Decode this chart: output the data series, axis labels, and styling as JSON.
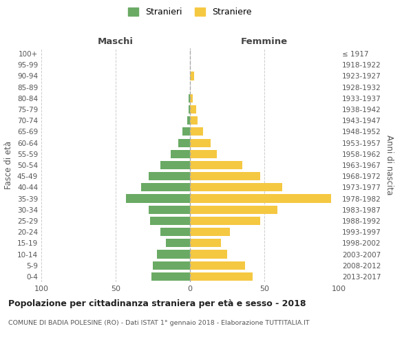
{
  "age_groups": [
    "100+",
    "95-99",
    "90-94",
    "85-89",
    "80-84",
    "75-79",
    "70-74",
    "65-69",
    "60-64",
    "55-59",
    "50-54",
    "45-49",
    "40-44",
    "35-39",
    "30-34",
    "25-29",
    "20-24",
    "15-19",
    "10-14",
    "5-9",
    "0-4"
  ],
  "birth_years": [
    "≤ 1917",
    "1918-1922",
    "1923-1927",
    "1928-1932",
    "1933-1937",
    "1938-1942",
    "1943-1947",
    "1948-1952",
    "1953-1957",
    "1958-1962",
    "1963-1967",
    "1968-1972",
    "1973-1977",
    "1978-1982",
    "1983-1987",
    "1988-1992",
    "1993-1997",
    "1998-2002",
    "2003-2007",
    "2008-2012",
    "2013-2017"
  ],
  "males": [
    0,
    0,
    0,
    0,
    1,
    1,
    2,
    5,
    8,
    13,
    20,
    28,
    33,
    43,
    28,
    27,
    20,
    16,
    22,
    25,
    26
  ],
  "females": [
    0,
    0,
    3,
    0,
    2,
    4,
    5,
    9,
    14,
    18,
    35,
    47,
    62,
    95,
    59,
    47,
    27,
    21,
    25,
    37,
    42
  ],
  "male_color": "#6aaa64",
  "female_color": "#f5c842",
  "dashed_line_color": "#aaaaaa",
  "grid_color": "#cccccc",
  "background_color": "#ffffff",
  "title": "Popolazione per cittadinanza straniera per età e sesso - 2018",
  "subtitle": "COMUNE DI BADIA POLESINE (RO) - Dati ISTAT 1° gennaio 2018 - Elaborazione TUTTITALIA.IT",
  "xlabel_left": "Maschi",
  "xlabel_right": "Femmine",
  "ylabel_left": "Fasce di età",
  "ylabel_right": "Anni di nascita",
  "legend_male": "Stranieri",
  "legend_female": "Straniere",
  "xlim": [
    -100,
    100
  ],
  "xticks": [
    -100,
    -50,
    0,
    50,
    100
  ],
  "xtick_labels": [
    "100",
    "50",
    "0",
    "50",
    "100"
  ]
}
